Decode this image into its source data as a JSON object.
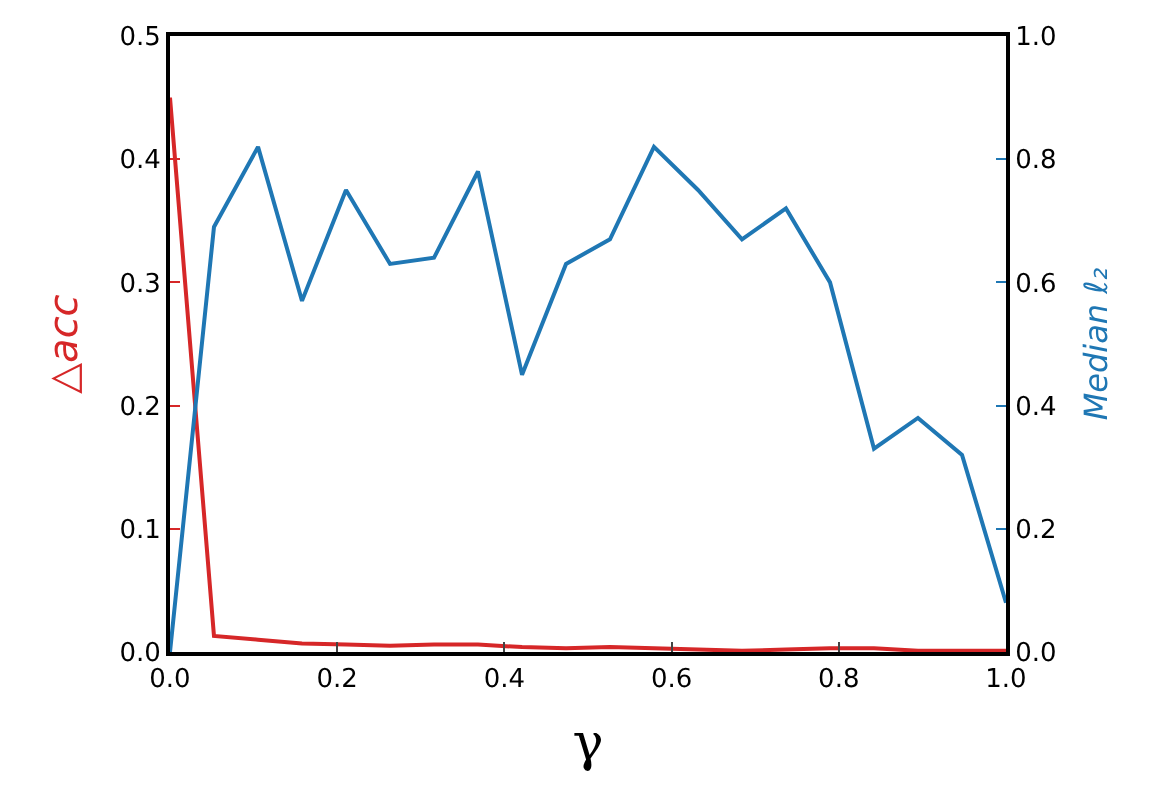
{
  "chart_data": {
    "type": "line",
    "xlabel": "γ",
    "ylabel": "△acc",
    "y2label": "Median ℓ₂",
    "x": [
      0,
      0.0526,
      0.1053,
      0.1579,
      0.2105,
      0.2632,
      0.3158,
      0.3684,
      0.4211,
      0.4737,
      0.5263,
      0.5789,
      0.6316,
      0.6842,
      0.7368,
      0.7895,
      0.8421,
      0.8947,
      0.9474,
      1.0
    ],
    "series": [
      {
        "color": "#d62728",
        "values": [
          0.45,
          0.013,
          0.01,
          0.007,
          0.006,
          0.005,
          0.006,
          0.006,
          0.004,
          0.003,
          0.004,
          0.003,
          0.002,
          0.001,
          0.002,
          0.003,
          0.003,
          0.001,
          0.001,
          0.001
        ]
      },
      {
        "color": "#1f77b4",
        "axis": "y2",
        "values": [
          0.0,
          0.69,
          0.82,
          0.57,
          0.75,
          0.63,
          0.64,
          0.78,
          0.45,
          0.63,
          0.67,
          0.82,
          0.75,
          0.67,
          0.72,
          0.6,
          0.33,
          0.38,
          0.32,
          0.08
        ]
      }
    ],
    "xlim": [
      0,
      1
    ],
    "xticks": [
      {
        "value": 0,
        "label": "0.0"
      },
      0.2,
      0.4,
      0.6,
      0.8,
      {
        "value": 1,
        "label": "1.0"
      }
    ],
    "ylim": [
      0,
      0.5
    ],
    "yticks": [
      {
        "value": 0,
        "label": "0.0"
      },
      0.1,
      0.2,
      0.3,
      0.4,
      0.5
    ],
    "y2lim": [
      0,
      1
    ],
    "y2ticks": [
      {
        "value": 0,
        "label": "0.0"
      },
      0.2,
      0.4,
      0.6,
      0.8,
      {
        "value": 1,
        "label": "1.0"
      }
    ],
    "marker": "none",
    "line_style": "solid"
  }
}
